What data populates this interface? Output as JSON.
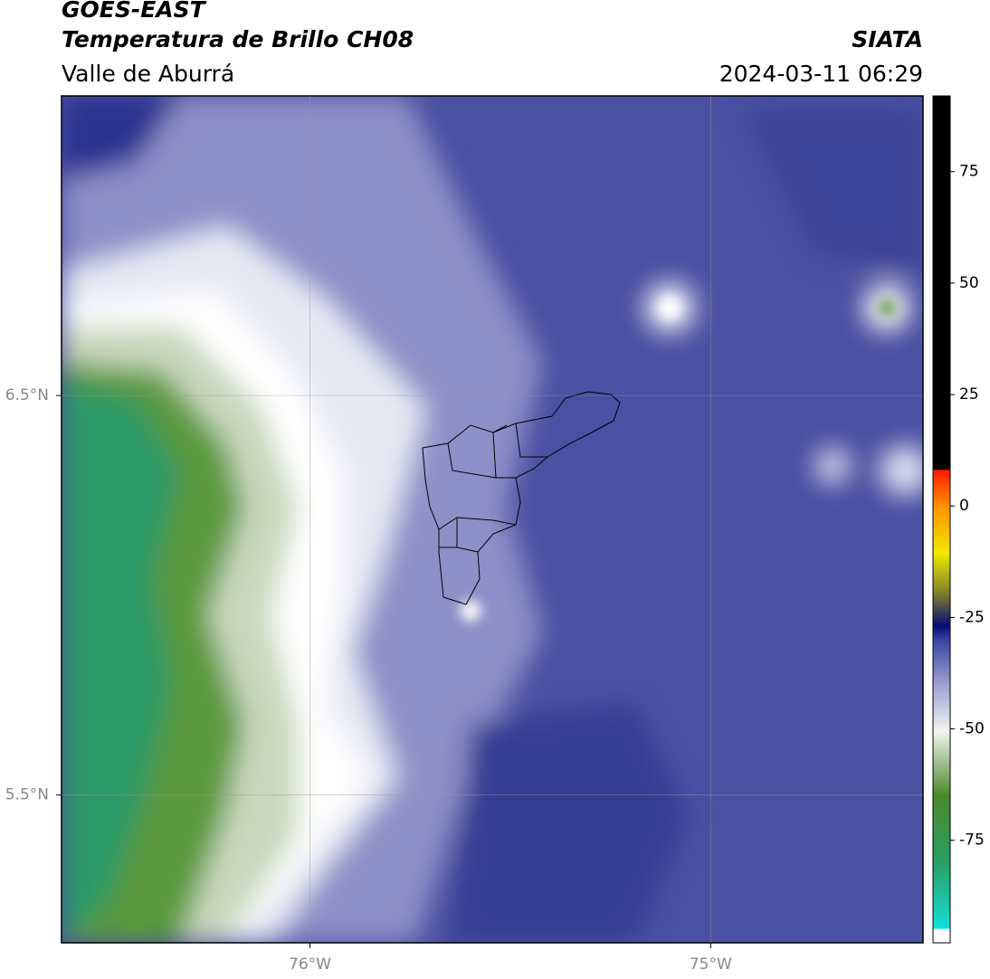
{
  "header": {
    "title": "GOES-EAST",
    "subtitle": "Temperatura de Brillo CH08",
    "region": "Valle de Aburrá",
    "source": "SIATA",
    "timestamp": "2024-03-11 06:29"
  },
  "map": {
    "xlim": [
      -76.62,
      -74.47
    ],
    "ylim": [
      5.13,
      7.25
    ],
    "xticks": [
      {
        "value": -76,
        "label": "76°W"
      },
      {
        "value": -75,
        "label": "75°W"
      }
    ],
    "yticks": [
      {
        "value": 6.5,
        "label": "6.5°N"
      },
      {
        "value": 5.5,
        "label": "5.5°N"
      }
    ]
  },
  "colorbar": {
    "lim": [
      -98,
      92
    ],
    "ticks": [
      75,
      50,
      25,
      0,
      -25,
      -50,
      -75
    ]
  }
}
